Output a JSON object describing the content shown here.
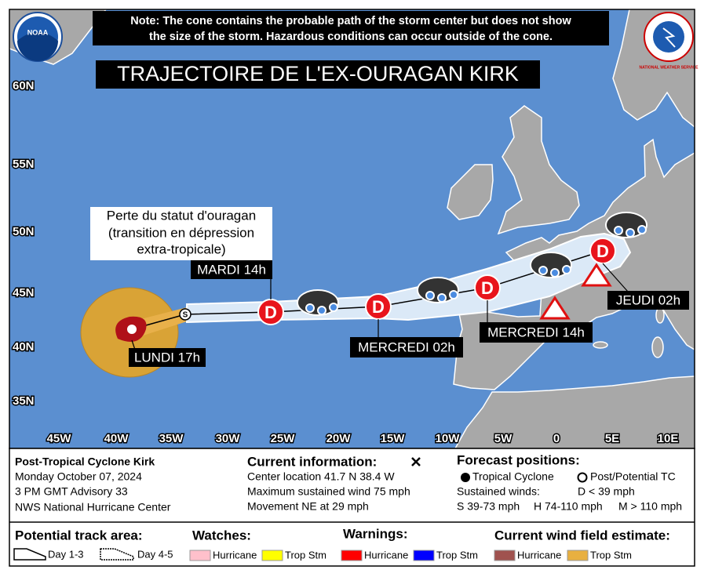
{
  "note": [
    "Note: The cone contains the probable path of the storm center but does not show",
    "the size of the storm. Hazardous conditions can occur outside of the cone."
  ],
  "logos": {
    "left": "NOAA",
    "right": "NATIONAL WEATHER SERVICE"
  },
  "title": "TRAJECTOIRE DE L'EX-OURAGAN KIRK",
  "lat_labels": [
    "60N",
    "55N",
    "50N",
    "45N",
    "40N",
    "35N"
  ],
  "lon_labels": [
    "45W",
    "40W",
    "35W",
    "30W",
    "25W",
    "20W",
    "15W",
    "10W",
    "5W",
    "0",
    "5E",
    "10E"
  ],
  "annotation": [
    "Perte du statut d'ouragan",
    "(transition en dépression",
    "extra-tropicale)"
  ],
  "time_labels": [
    "LUNDI 17h",
    "MARDI 14h",
    "MERCREDI 02h",
    "MERCREDI 14h",
    "JEUDI 02h"
  ],
  "markers": {
    "start": "S",
    "points": [
      "D",
      "D",
      "D",
      "D"
    ]
  },
  "info": {
    "name": "Post-Tropical Cyclone Kirk",
    "date": "Monday October 07, 2024",
    "advisory": "3 PM GMT Advisory 33",
    "center": "NWS National Hurricane Center"
  },
  "current": {
    "heading": "Current information:",
    "lines": [
      "Center location 41.7 N 38.4 W",
      "Maximum sustained wind 75 mph",
      "Movement NE at 29 mph"
    ]
  },
  "forecast": {
    "heading": "Forecast positions:",
    "tropical": "Tropical Cyclone",
    "post": "Post/Potential TC",
    "sustained": "Sustained winds:",
    "d": "D < 39 mph",
    "s": "S 39-73 mph",
    "h": "H 74-110 mph",
    "m": "M > 110 mph"
  },
  "legend": {
    "track_title": "Potential track area:",
    "day13": "Day 1-3",
    "day45": "Day 4-5",
    "watches": "Watches:",
    "warnings": "Warnings:",
    "wind": "Current wind field estimate:",
    "watch_items": [
      "Hurricane",
      "Trop Stm"
    ],
    "warning_items": [
      "Hurricane",
      "Trop Stm"
    ],
    "wind_items": [
      "Hurricane",
      "Trop Stm"
    ]
  }
}
